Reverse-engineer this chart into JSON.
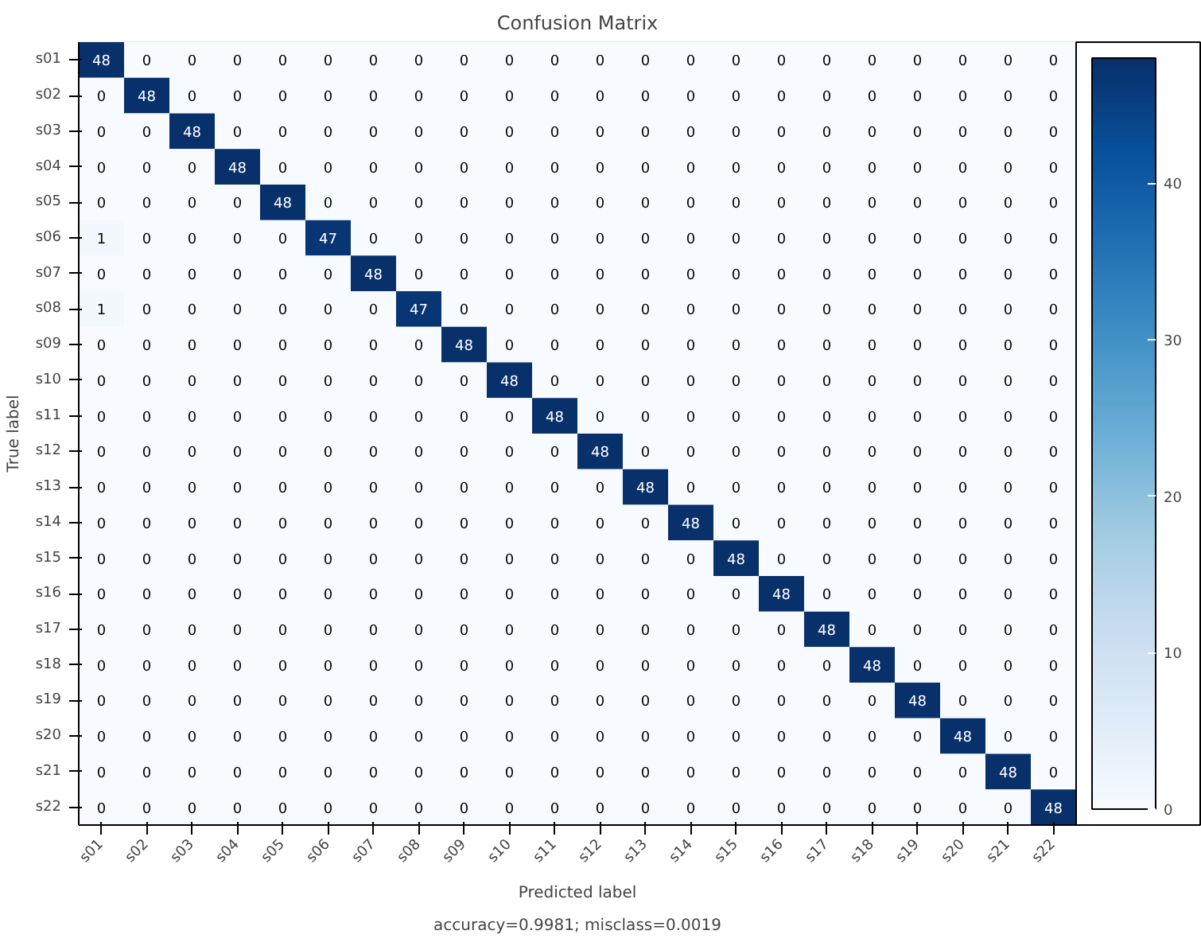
{
  "chart_data": {
    "type": "heatmap",
    "title": "Confusion Matrix",
    "xlabel": "Predicted label",
    "ylabel": "True label",
    "annotations": [
      "accuracy=0.9981; misclass=0.0019"
    ],
    "categories": [
      "s01",
      "s02",
      "s03",
      "s04",
      "s05",
      "s06",
      "s07",
      "s08",
      "s09",
      "s10",
      "s11",
      "s12",
      "s13",
      "s14",
      "s15",
      "s16",
      "s17",
      "s18",
      "s19",
      "s20",
      "s21",
      "s22"
    ],
    "y_categories": [
      "s01",
      "s02",
      "s03",
      "s04",
      "s05",
      "s06",
      "s07",
      "s08",
      "s09",
      "s10",
      "s11",
      "s12",
      "s13",
      "s14",
      "s15",
      "s16",
      "s17",
      "s18",
      "s19",
      "s20",
      "s21",
      "s22"
    ],
    "cells": [
      [
        48,
        0,
        0,
        0,
        0,
        0,
        0,
        0,
        0,
        0,
        0,
        0,
        0,
        0,
        0,
        0,
        0,
        0,
        0,
        0,
        0,
        0
      ],
      [
        0,
        48,
        0,
        0,
        0,
        0,
        0,
        0,
        0,
        0,
        0,
        0,
        0,
        0,
        0,
        0,
        0,
        0,
        0,
        0,
        0,
        0
      ],
      [
        0,
        0,
        48,
        0,
        0,
        0,
        0,
        0,
        0,
        0,
        0,
        0,
        0,
        0,
        0,
        0,
        0,
        0,
        0,
        0,
        0,
        0
      ],
      [
        0,
        0,
        0,
        48,
        0,
        0,
        0,
        0,
        0,
        0,
        0,
        0,
        0,
        0,
        0,
        0,
        0,
        0,
        0,
        0,
        0,
        0
      ],
      [
        0,
        0,
        0,
        0,
        48,
        0,
        0,
        0,
        0,
        0,
        0,
        0,
        0,
        0,
        0,
        0,
        0,
        0,
        0,
        0,
        0,
        0
      ],
      [
        1,
        0,
        0,
        0,
        0,
        47,
        0,
        0,
        0,
        0,
        0,
        0,
        0,
        0,
        0,
        0,
        0,
        0,
        0,
        0,
        0,
        0
      ],
      [
        0,
        0,
        0,
        0,
        0,
        0,
        48,
        0,
        0,
        0,
        0,
        0,
        0,
        0,
        0,
        0,
        0,
        0,
        0,
        0,
        0,
        0
      ],
      [
        1,
        0,
        0,
        0,
        0,
        0,
        0,
        47,
        0,
        0,
        0,
        0,
        0,
        0,
        0,
        0,
        0,
        0,
        0,
        0,
        0,
        0
      ],
      [
        0,
        0,
        0,
        0,
        0,
        0,
        0,
        0,
        48,
        0,
        0,
        0,
        0,
        0,
        0,
        0,
        0,
        0,
        0,
        0,
        0,
        0
      ],
      [
        0,
        0,
        0,
        0,
        0,
        0,
        0,
        0,
        0,
        48,
        0,
        0,
        0,
        0,
        0,
        0,
        0,
        0,
        0,
        0,
        0,
        0
      ],
      [
        0,
        0,
        0,
        0,
        0,
        0,
        0,
        0,
        0,
        0,
        48,
        0,
        0,
        0,
        0,
        0,
        0,
        0,
        0,
        0,
        0,
        0
      ],
      [
        0,
        0,
        0,
        0,
        0,
        0,
        0,
        0,
        0,
        0,
        0,
        48,
        0,
        0,
        0,
        0,
        0,
        0,
        0,
        0,
        0,
        0
      ],
      [
        0,
        0,
        0,
        0,
        0,
        0,
        0,
        0,
        0,
        0,
        0,
        0,
        48,
        0,
        0,
        0,
        0,
        0,
        0,
        0,
        0,
        0
      ],
      [
        0,
        0,
        0,
        0,
        0,
        0,
        0,
        0,
        0,
        0,
        0,
        0,
        0,
        48,
        0,
        0,
        0,
        0,
        0,
        0,
        0,
        0
      ],
      [
        0,
        0,
        0,
        0,
        0,
        0,
        0,
        0,
        0,
        0,
        0,
        0,
        0,
        0,
        48,
        0,
        0,
        0,
        0,
        0,
        0,
        0
      ],
      [
        0,
        0,
        0,
        0,
        0,
        0,
        0,
        0,
        0,
        0,
        0,
        0,
        0,
        0,
        0,
        48,
        0,
        0,
        0,
        0,
        0,
        0
      ],
      [
        0,
        0,
        0,
        0,
        0,
        0,
        0,
        0,
        0,
        0,
        0,
        0,
        0,
        0,
        0,
        0,
        48,
        0,
        0,
        0,
        0,
        0
      ],
      [
        0,
        0,
        0,
        0,
        0,
        0,
        0,
        0,
        0,
        0,
        0,
        0,
        0,
        0,
        0,
        0,
        0,
        48,
        0,
        0,
        0,
        0
      ],
      [
        0,
        0,
        0,
        0,
        0,
        0,
        0,
        0,
        0,
        0,
        0,
        0,
        0,
        0,
        0,
        0,
        0,
        0,
        48,
        0,
        0,
        0
      ],
      [
        0,
        0,
        0,
        0,
        0,
        0,
        0,
        0,
        0,
        0,
        0,
        0,
        0,
        0,
        0,
        0,
        0,
        0,
        0,
        48,
        0,
        0
      ],
      [
        0,
        0,
        0,
        0,
        0,
        0,
        0,
        0,
        0,
        0,
        0,
        0,
        0,
        0,
        0,
        0,
        0,
        0,
        0,
        0,
        48,
        0
      ],
      [
        0,
        0,
        0,
        0,
        0,
        0,
        0,
        0,
        0,
        0,
        0,
        0,
        0,
        0,
        0,
        0,
        0,
        0,
        0,
        0,
        0,
        48
      ]
    ],
    "clim": [
      0,
      48
    ],
    "cticks": [
      0,
      10,
      20,
      30,
      40
    ],
    "data_labels": true
  }
}
